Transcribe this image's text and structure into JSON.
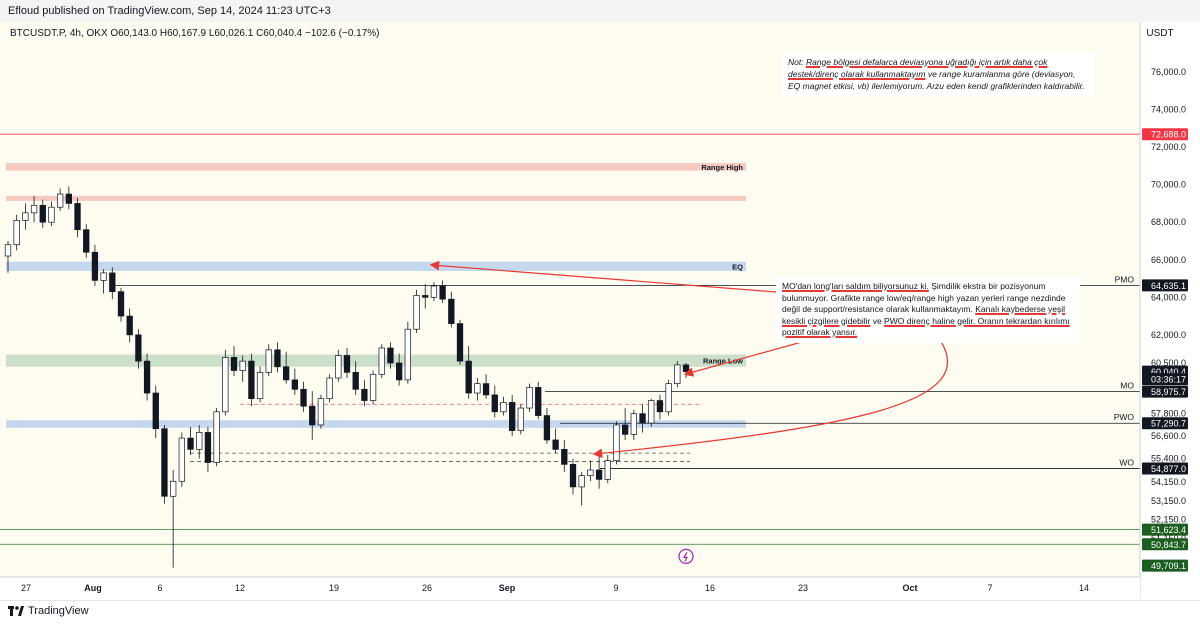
{
  "header": {
    "publisher": "Efloud published on TradingView.com, Sep 14, 2024 11:23 UTC+3"
  },
  "legend": {
    "symbol": "BTCUSDT.P, 4h, OKX",
    "open": "O60,143.0",
    "high": "H60,167.9",
    "low": "L60,026.1",
    "close": "C60,040.4",
    "change": "−102.6 (−0.17%)"
  },
  "footer": {
    "brand": "TradingView"
  },
  "notes": {
    "top_prefix": "Not: ",
    "top_underlined_1": "Range bölgesi defalarca deviasyona uğradığı için artık daha çok destek/direnç olarak kullanmaktayım",
    "top_rest": " ve range kuramlanma göre (deviasyon, EQ magnet etkisi, vb) ilerlemiyorum. Arzu eden kendi grafiklerinden kaldırabilir.",
    "mid_underlined_1": "MO'dan long'ları saldım biliyorsunuz ki.",
    "mid_text_1": " Şimdilik ekstra bir pozisyonum bulunmuyor. Grafikte range low/eq/range high yazan yerleri range nezdinde değil de support/resistance olarak kullanmaktayım. ",
    "mid_underlined_2": "Kanalı kaybederse yeşil kesikli çizgilere gidebilir",
    "mid_text_2": " ve ",
    "mid_underlined_3": "PWO direnç haline gelir. Oranın tekrardan kırılımı pozitif olarak yansır."
  },
  "colors": {
    "bg": "#fefcf0",
    "up": "#131722",
    "range_red": "#f6c4bb",
    "range_blue": "#bfd4ec",
    "range_green": "#c6dcc3",
    "arrow": "#e53935",
    "label_red": "#f23645",
    "label_green": "#1b5e20"
  },
  "chart_data": {
    "type": "candlestick",
    "symbol": "BTCUSDT.P",
    "timeframe": "4h",
    "exchange": "OKX",
    "currency_label": "USDT",
    "ylim": [
      49100,
      77600
    ],
    "x_ticks": [
      "27",
      "Aug",
      "6",
      "12",
      "19",
      "26",
      "Sep",
      "9",
      "16",
      "23",
      "Oct",
      "7",
      "14"
    ],
    "y_ticks": [
      "76,000.0",
      "74,000.0",
      "72,000.0",
      "70,000.0",
      "68,000.0",
      "66,000.0",
      "64,000.0",
      "62,000.0",
      "60,500.0",
      "59,500.0",
      "57,800.0",
      "56,600.0",
      "55,400.0",
      "54,150.0",
      "53,150.0",
      "52,150.0",
      "51,150.0"
    ],
    "y_tick_values": [
      76000,
      74000,
      72000,
      70000,
      68000,
      66000,
      64000,
      62000,
      60500,
      59500,
      57800,
      56600,
      55400,
      54150,
      53150,
      52150,
      51150
    ],
    "price_labels": [
      {
        "text": "72,688.0",
        "value": 72688,
        "kind": "red"
      },
      {
        "text": "64,635.1",
        "value": 64635.1,
        "kind": "black"
      },
      {
        "text": "60,040.4",
        "value": 60040.4,
        "kind": "black"
      },
      {
        "text": "03:36:17",
        "value": 59640,
        "kind": "black"
      },
      {
        "text": "58,975.7",
        "value": 58975.7,
        "kind": "black"
      },
      {
        "text": "57,290.7",
        "value": 57290.7,
        "kind": "black"
      },
      {
        "text": "54,877.0",
        "value": 54877,
        "kind": "black"
      },
      {
        "text": "51,623.4",
        "value": 51623.4,
        "kind": "green"
      },
      {
        "text": "50,843.7",
        "value": 50843.7,
        "kind": "green"
      },
      {
        "text": "49,709.1",
        "value": 49709.1,
        "kind": "green"
      }
    ],
    "zones": [
      {
        "name": "Range High",
        "low": 70750,
        "high": 71150,
        "color": "red"
      },
      {
        "name": "",
        "low": 69150,
        "high": 69400,
        "color": "red"
      },
      {
        "name": "EQ",
        "low": 65400,
        "high": 65900,
        "color": "blue"
      },
      {
        "name": "Range Low",
        "low": 60300,
        "high": 60950,
        "color": "green"
      },
      {
        "name": "",
        "low": 57050,
        "high": 57450,
        "color": "blue"
      }
    ],
    "levels": [
      {
        "name": "",
        "value": 72688
      },
      {
        "name": "PMO",
        "value": 64635.1
      },
      {
        "name": "MO",
        "value": 58975.7
      },
      {
        "name": "PWO",
        "value": 57290.7
      },
      {
        "name": "WO",
        "value": 54877
      },
      {
        "name": "",
        "value": 51623.4
      },
      {
        "name": "",
        "value": 50843.7
      }
    ],
    "dashed_levels": [
      58300,
      55700,
      55250
    ],
    "series": [
      {
        "name": "BTCUSDT.P",
        "values": [
          [
            66200,
            67000,
            65300,
            66800
          ],
          [
            66800,
            68400,
            66500,
            68100
          ],
          [
            68100,
            69000,
            67600,
            68500
          ],
          [
            68500,
            69400,
            68000,
            68900
          ],
          [
            68900,
            69200,
            67700,
            68000
          ],
          [
            68000,
            69100,
            67800,
            68800
          ],
          [
            68800,
            69800,
            68600,
            69500
          ],
          [
            69500,
            69900,
            68700,
            69000
          ],
          [
            69000,
            69300,
            67200,
            67600
          ],
          [
            67600,
            67900,
            66100,
            66400
          ],
          [
            66400,
            66800,
            64600,
            64900
          ],
          [
            64900,
            65500,
            64200,
            65300
          ],
          [
            65300,
            65600,
            63900,
            64300
          ],
          [
            64300,
            64500,
            62700,
            63000
          ],
          [
            63000,
            63400,
            61600,
            62000
          ],
          [
            62000,
            62300,
            60200,
            60600
          ],
          [
            60600,
            61000,
            58500,
            58900
          ],
          [
            58900,
            59300,
            56500,
            57000
          ],
          [
            57000,
            57200,
            53000,
            53400
          ],
          [
            53400,
            54800,
            49600,
            54200
          ],
          [
            54200,
            56800,
            53900,
            56500
          ],
          [
            56500,
            57100,
            55600,
            55900
          ],
          [
            55900,
            57200,
            55400,
            56800
          ],
          [
            56800,
            57100,
            54700,
            55200
          ],
          [
            55200,
            58100,
            55000,
            57900
          ],
          [
            57900,
            61200,
            57700,
            60800
          ],
          [
            60800,
            61400,
            59800,
            60100
          ],
          [
            60100,
            60900,
            59500,
            60600
          ],
          [
            60600,
            61000,
            58200,
            58600
          ],
          [
            58600,
            60300,
            58400,
            60000
          ],
          [
            60000,
            61500,
            59800,
            61200
          ],
          [
            61200,
            61600,
            60000,
            60300
          ],
          [
            60300,
            61100,
            59400,
            59600
          ],
          [
            59600,
            60200,
            58800,
            59100
          ],
          [
            59100,
            59500,
            57900,
            58200
          ],
          [
            58200,
            59000,
            56400,
            57200
          ],
          [
            57200,
            58800,
            57000,
            58600
          ],
          [
            58600,
            59900,
            58400,
            59700
          ],
          [
            59700,
            61200,
            59500,
            60900
          ],
          [
            60900,
            61300,
            59700,
            60000
          ],
          [
            60000,
            60600,
            58800,
            59100
          ],
          [
            59100,
            59600,
            58200,
            58500
          ],
          [
            58500,
            60100,
            58300,
            59900
          ],
          [
            59900,
            61500,
            59700,
            61300
          ],
          [
            61300,
            61600,
            60200,
            60500
          ],
          [
            60500,
            61000,
            59300,
            59600
          ],
          [
            59600,
            62700,
            59400,
            62300
          ],
          [
            62300,
            64400,
            62100,
            64100
          ],
          [
            64100,
            64700,
            63400,
            64000
          ],
          [
            64000,
            64800,
            63800,
            64600
          ],
          [
            64600,
            64900,
            63700,
            63900
          ],
          [
            63900,
            64300,
            62400,
            62600
          ],
          [
            62600,
            62800,
            60400,
            60600
          ],
          [
            60600,
            61400,
            58600,
            58900
          ],
          [
            58900,
            59700,
            58500,
            59400
          ],
          [
            59400,
            59900,
            58600,
            58800
          ],
          [
            58800,
            59300,
            57600,
            57900
          ],
          [
            57900,
            58700,
            57700,
            58400
          ],
          [
            58400,
            58800,
            56600,
            56900
          ],
          [
            56900,
            58300,
            56700,
            58100
          ],
          [
            58100,
            59400,
            57900,
            59200
          ],
          [
            59200,
            59500,
            57500,
            57700
          ],
          [
            57700,
            58100,
            56200,
            56400
          ],
          [
            56400,
            57000,
            55700,
            55900
          ],
          [
            55900,
            56400,
            54700,
            55100
          ],
          [
            55100,
            55400,
            53500,
            53900
          ],
          [
            53900,
            54700,
            52900,
            54500
          ],
          [
            54500,
            55300,
            54200,
            54800
          ],
          [
            54800,
            55600,
            53800,
            54300
          ],
          [
            54300,
            55600,
            54100,
            55300
          ],
          [
            55300,
            57400,
            55100,
            57200
          ],
          [
            57200,
            58100,
            56400,
            56700
          ],
          [
            56700,
            58000,
            56400,
            57800
          ],
          [
            57800,
            58300,
            56800,
            57300
          ],
          [
            57300,
            58600,
            57100,
            58500
          ],
          [
            58500,
            58800,
            57500,
            57900
          ],
          [
            57900,
            59600,
            57700,
            59400
          ],
          [
            59400,
            60600,
            59200,
            60400
          ],
          [
            60400,
            60500,
            59700,
            60040
          ]
        ]
      }
    ],
    "annotation_labels": [
      "Range High",
      "EQ",
      "Range Low",
      "PMO",
      "MO",
      "PWO",
      "WO"
    ]
  }
}
